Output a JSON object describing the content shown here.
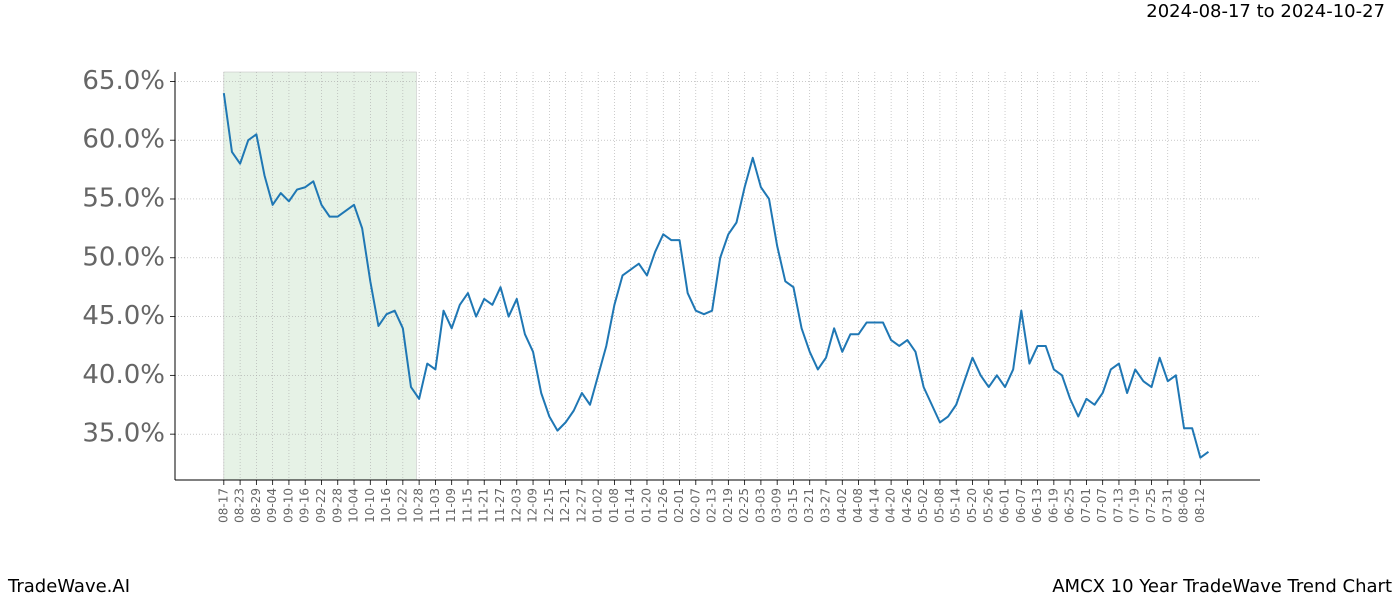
{
  "header": {
    "date_range": "2024-08-17 to 2024-10-27"
  },
  "footer": {
    "left": "TradeWave.AI",
    "right": "AMCX 10 Year TradeWave Trend Chart"
  },
  "chart_data": {
    "type": "line",
    "x": [
      0,
      3,
      6,
      9,
      12,
      15,
      18,
      21,
      24,
      27,
      30,
      33,
      36,
      39,
      42,
      45,
      48,
      51,
      54,
      57,
      60,
      63,
      66,
      69,
      72,
      75,
      78,
      81,
      84,
      87,
      90,
      93,
      96,
      99,
      102,
      105,
      108,
      111,
      114,
      117,
      120,
      123,
      126,
      129,
      132,
      135,
      138,
      141,
      144,
      147,
      150,
      153,
      156,
      159,
      162,
      165,
      168,
      171,
      174,
      177,
      180,
      183,
      186,
      189,
      192,
      195,
      198,
      201,
      204,
      207,
      210,
      213,
      216,
      219,
      222,
      225,
      228,
      231,
      234,
      237,
      240,
      243,
      246,
      249,
      252,
      255,
      258,
      261,
      264,
      267,
      270,
      273,
      276,
      279,
      282,
      285,
      288,
      291,
      294,
      297,
      300,
      303,
      306,
      309,
      312,
      315,
      318,
      321,
      324,
      327,
      330,
      333,
      336,
      339,
      342,
      345,
      348,
      351,
      354,
      357,
      360,
      363
    ],
    "series": [
      {
        "color": "#1f77b4",
        "values": [
          64.0,
          59.0,
          58.0,
          60.0,
          60.5,
          57.0,
          54.5,
          55.5,
          54.8,
          55.8,
          56.0,
          56.5,
          54.5,
          53.5,
          53.5,
          54.0,
          54.5,
          52.5,
          48.0,
          44.2,
          45.2,
          45.5,
          44.0,
          39.0,
          38.0,
          41.0,
          40.5,
          45.5,
          44.0,
          46.0,
          47.0,
          45.0,
          46.5,
          46.0,
          47.5,
          45.0,
          46.5,
          43.5,
          42.0,
          38.5,
          36.5,
          35.3,
          36.0,
          37.0,
          38.5,
          37.5,
          40.0,
          42.5,
          46.0,
          48.5,
          49.0,
          49.5,
          48.5,
          50.5,
          52.0,
          51.5,
          51.5,
          47.0,
          45.5,
          45.2,
          45.5,
          50.0,
          52.0,
          53.0,
          56.0,
          58.5,
          56.0,
          55.0,
          51.0,
          48.0,
          47.5,
          44.0,
          42.0,
          40.5,
          41.5,
          44.0,
          42.0,
          43.5,
          43.5,
          44.5,
          44.5,
          44.5,
          43.0,
          42.5,
          43.0,
          42.0,
          39.0,
          37.5,
          36.0,
          36.5,
          37.5,
          39.5,
          41.5,
          40.0,
          39.0,
          40.0,
          39.0,
          40.5,
          45.5,
          41.0,
          42.5,
          42.5,
          40.5,
          40.0,
          38.0,
          36.5,
          38.0,
          37.5,
          38.5,
          40.5,
          41.0,
          38.5,
          40.5,
          39.5,
          39.0,
          41.5,
          39.5,
          40.0,
          35.5,
          35.5,
          33.0,
          33.5
        ]
      }
    ],
    "shaded_range": {
      "start": 0,
      "end": 71,
      "color": "#e6f2e6"
    },
    "xlim": [
      -18,
      382
    ],
    "xticks": [
      {
        "value": 0,
        "label": "08-17"
      },
      {
        "value": 6,
        "label": "08-23"
      },
      {
        "value": 12,
        "label": "08-29"
      },
      {
        "value": 18,
        "label": "09-04"
      },
      {
        "value": 24,
        "label": "09-10"
      },
      {
        "value": 30,
        "label": "09-16"
      },
      {
        "value": 36,
        "label": "09-22"
      },
      {
        "value": 42,
        "label": "09-28"
      },
      {
        "value": 48,
        "label": "10-04"
      },
      {
        "value": 54,
        "label": "10-10"
      },
      {
        "value": 60,
        "label": "10-16"
      },
      {
        "value": 66,
        "label": "10-22"
      },
      {
        "value": 72,
        "label": "10-28"
      },
      {
        "value": 78,
        "label": "11-03"
      },
      {
        "value": 84,
        "label": "11-09"
      },
      {
        "value": 90,
        "label": "11-15"
      },
      {
        "value": 96,
        "label": "11-21"
      },
      {
        "value": 102,
        "label": "11-27"
      },
      {
        "value": 108,
        "label": "12-03"
      },
      {
        "value": 114,
        "label": "12-09"
      },
      {
        "value": 120,
        "label": "12-15"
      },
      {
        "value": 126,
        "label": "12-21"
      },
      {
        "value": 132,
        "label": "12-27"
      },
      {
        "value": 138,
        "label": "01-02"
      },
      {
        "value": 144,
        "label": "01-08"
      },
      {
        "value": 150,
        "label": "01-14"
      },
      {
        "value": 156,
        "label": "01-20"
      },
      {
        "value": 162,
        "label": "01-26"
      },
      {
        "value": 168,
        "label": "02-01"
      },
      {
        "value": 174,
        "label": "02-07"
      },
      {
        "value": 180,
        "label": "02-13"
      },
      {
        "value": 186,
        "label": "02-19"
      },
      {
        "value": 192,
        "label": "02-25"
      },
      {
        "value": 198,
        "label": "03-03"
      },
      {
        "value": 204,
        "label": "03-09"
      },
      {
        "value": 210,
        "label": "03-15"
      },
      {
        "value": 216,
        "label": "03-21"
      },
      {
        "value": 222,
        "label": "03-27"
      },
      {
        "value": 228,
        "label": "04-02"
      },
      {
        "value": 234,
        "label": "04-08"
      },
      {
        "value": 240,
        "label": "04-14"
      },
      {
        "value": 246,
        "label": "04-20"
      },
      {
        "value": 252,
        "label": "04-26"
      },
      {
        "value": 258,
        "label": "05-02"
      },
      {
        "value": 264,
        "label": "05-08"
      },
      {
        "value": 270,
        "label": "05-14"
      },
      {
        "value": 276,
        "label": "05-20"
      },
      {
        "value": 282,
        "label": "05-26"
      },
      {
        "value": 288,
        "label": "06-01"
      },
      {
        "value": 294,
        "label": "06-07"
      },
      {
        "value": 300,
        "label": "06-13"
      },
      {
        "value": 306,
        "label": "06-19"
      },
      {
        "value": 312,
        "label": "06-25"
      },
      {
        "value": 318,
        "label": "07-01"
      },
      {
        "value": 324,
        "label": "07-07"
      },
      {
        "value": 330,
        "label": "07-13"
      },
      {
        "value": 336,
        "label": "07-19"
      },
      {
        "value": 342,
        "label": "07-25"
      },
      {
        "value": 348,
        "label": "07-31"
      },
      {
        "value": 354,
        "label": "08-06"
      },
      {
        "value": 360,
        "label": "08-12"
      }
    ],
    "ylim": [
      31.1,
      65.8
    ],
    "yticks": [
      {
        "value": 35,
        "label": "35.0%"
      },
      {
        "value": 40,
        "label": "40.0%"
      },
      {
        "value": 45,
        "label": "45.0%"
      },
      {
        "value": 50,
        "label": "50.0%"
      },
      {
        "value": 55,
        "label": "55.0%"
      },
      {
        "value": 60,
        "label": "60.0%"
      },
      {
        "value": 65,
        "label": "65.0%"
      }
    ],
    "grid": true
  }
}
